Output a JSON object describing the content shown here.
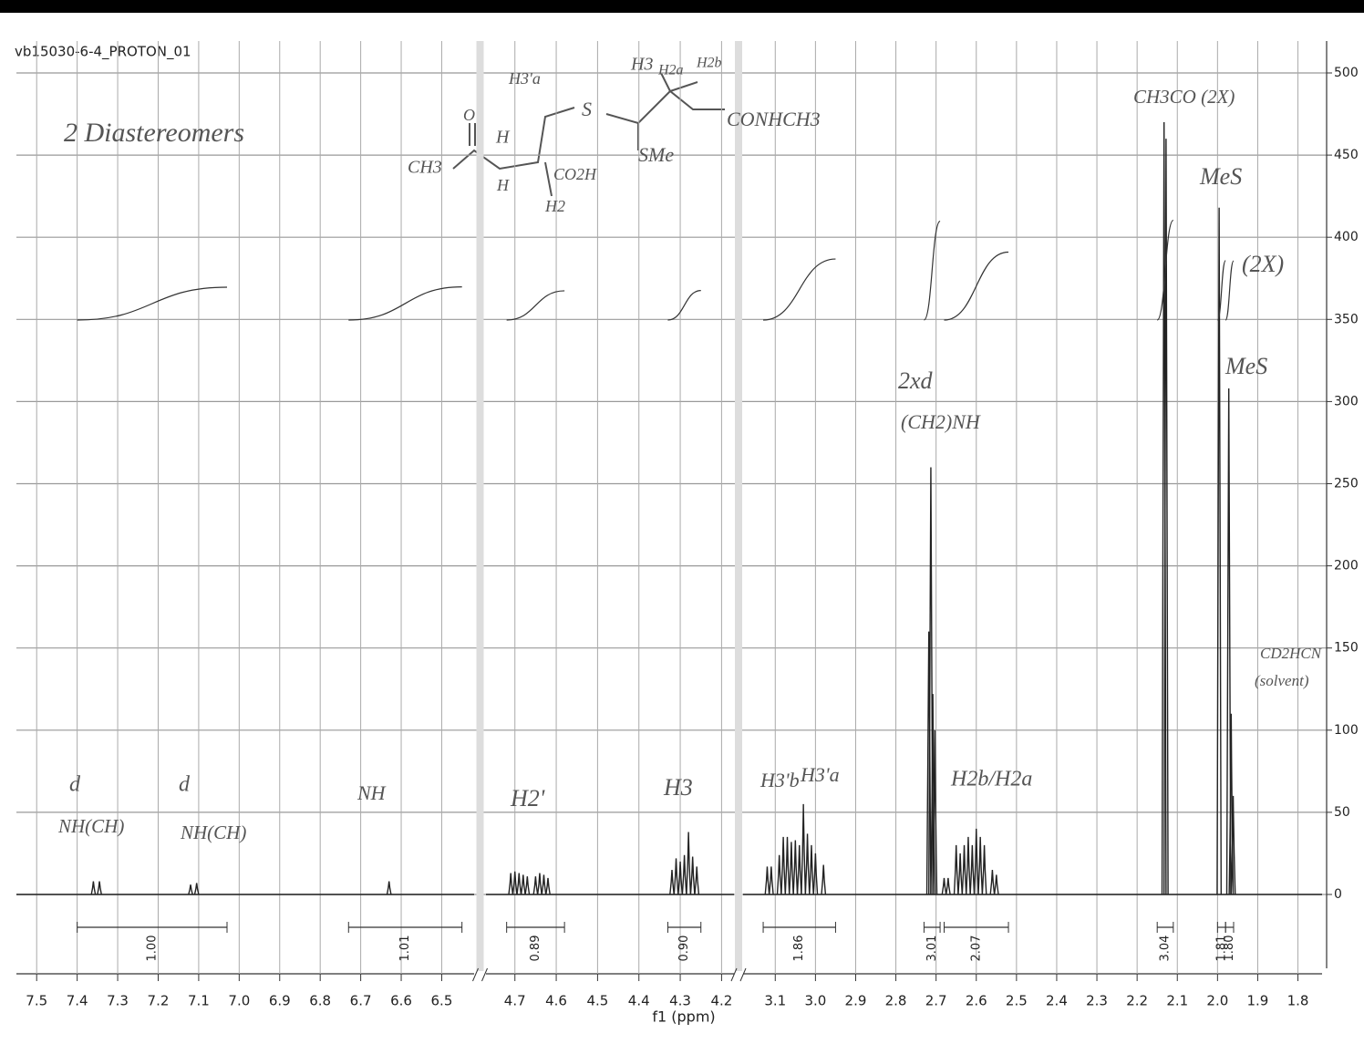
{
  "chart_data": {
    "type": "nmr",
    "title": "vb15030-6-4_PROTON_01",
    "x_label": "f1 (ppm)",
    "x_segments": [
      {
        "xlim": [
          7.55,
          6.42
        ],
        "xticks": [
          7.5,
          7.4,
          7.3,
          7.2,
          7.1,
          {
            "value": 7,
            "label": "7.0"
          },
          6.9,
          6.8,
          6.7,
          6.6,
          6.5
        ]
      },
      {
        "xlim": [
          4.77,
          4.17
        ],
        "xticks": [
          4.7,
          4.6,
          4.5,
          4.4,
          4.3,
          4.2
        ]
      },
      {
        "xlim": [
          3.18,
          1.74
        ],
        "xticks": [
          3.1,
          {
            "value": 3,
            "label": "3.0"
          },
          2.9,
          2.8,
          2.7,
          2.6,
          2.5,
          2.4,
          2.3,
          2.2,
          2.1,
          {
            "value": 2,
            "label": "2.0"
          },
          1.9,
          1.8
        ]
      }
    ],
    "ylim": [
      -60,
      520
    ],
    "yticks": [
      0,
      50,
      100,
      150,
      200,
      250,
      300,
      350,
      400,
      450,
      500
    ],
    "grid": true,
    "color": "#222222",
    "x": [
      7.36,
      7.345,
      7.12,
      7.105,
      6.63,
      4.71,
      4.7,
      4.69,
      4.68,
      4.67,
      4.65,
      4.64,
      4.63,
      4.62,
      4.32,
      4.31,
      4.3,
      4.29,
      4.28,
      4.27,
      4.26,
      3.12,
      3.11,
      3.09,
      3.08,
      3.07,
      3.06,
      3.05,
      3.04,
      3.03,
      3.02,
      3.01,
      3.0,
      2.98,
      2.718,
      2.713,
      2.708,
      2.703,
      2.68,
      2.67,
      2.65,
      2.64,
      2.63,
      2.62,
      2.61,
      2.6,
      2.59,
      2.58,
      2.56,
      2.55,
      2.133,
      2.128,
      1.996,
      1.972,
      1.966,
      1.961
    ],
    "values": [
      8,
      8,
      6,
      7,
      8,
      13,
      14,
      13,
      12,
      11,
      11,
      13,
      12,
      10,
      15,
      22,
      20,
      24,
      38,
      23,
      17,
      17,
      17,
      24,
      35,
      35,
      32,
      33,
      30,
      55,
      37,
      30,
      25,
      18,
      160,
      260,
      122,
      100,
      10,
      10,
      30,
      25,
      30,
      35,
      30,
      40,
      35,
      30,
      15,
      12,
      470,
      460,
      418,
      308,
      110,
      60
    ],
    "integrals": {
      "values": [
        1,
        1.01,
        0.89,
        0.9,
        1.86,
        3.01,
        2.07,
        3.04,
        1.81,
        1.8
      ],
      "value_labels": [
        "1.00",
        "1.01",
        "0.89",
        "0.90",
        "1.86",
        "3.01",
        "2.07",
        "3.04",
        "1.81",
        "1.80"
      ],
      "ranges": [
        [
          7.4,
          7.03
        ],
        [
          6.73,
          6.45
        ],
        [
          4.72,
          4.58
        ],
        [
          4.33,
          4.25
        ],
        [
          3.13,
          2.95
        ],
        [
          2.73,
          2.69
        ],
        [
          2.68,
          2.52
        ],
        [
          2.15,
          2.11
        ],
        [
          2.0,
          1.98
        ],
        [
          1.98,
          1.96
        ]
      ]
    },
    "annotations": [
      "2 Diastereomers",
      "CH3CO (2X)",
      "MeS",
      "(2X)",
      "MeS",
      "2xd",
      "(CH2)NH",
      "CD2HCN",
      "(solvent)",
      "d",
      "NH(CH)",
      "d",
      "NH(CH)",
      "NH",
      "H2'",
      "H3",
      "H3'b",
      "H3'a",
      "H2b/H2a"
    ],
    "structure_labels": [
      "CH3",
      "O",
      "H",
      "H",
      "H2",
      "CO2H",
      "S",
      "SMe",
      "CONHCH3",
      "H3'a",
      "H3",
      "H2a",
      "H2b"
    ]
  }
}
